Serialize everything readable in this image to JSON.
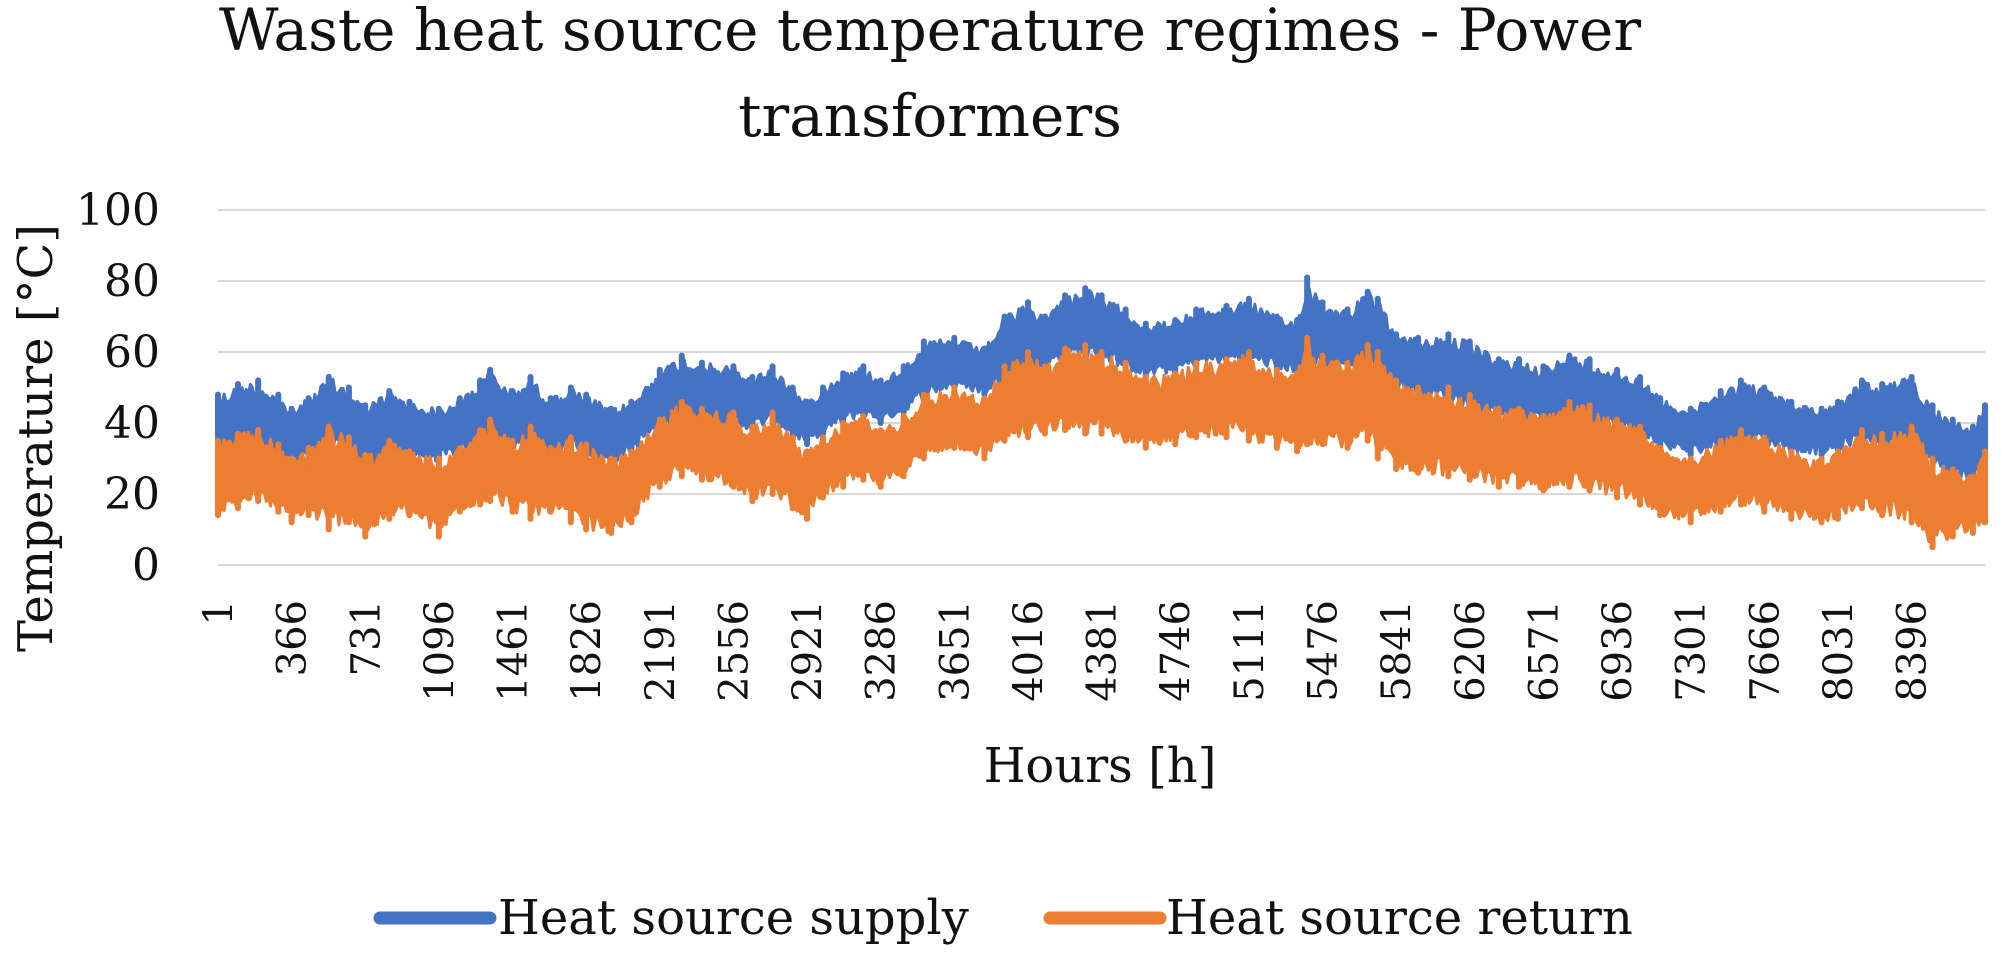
{
  "chart_data": {
    "type": "line",
    "title_lines": [
      "Waste heat source temperature regimes - Power",
      "transformers"
    ],
    "xlabel": "Hours [h]",
    "ylabel": "Temperature [°C]",
    "ylim": [
      0,
      100
    ],
    "yticks": [
      "0",
      "20",
      "40",
      "60",
      "80",
      "100"
    ],
    "xlim": [
      1,
      8760
    ],
    "xticks": [
      "1",
      "366",
      "731",
      "1096",
      "1461",
      "1826",
      "2191",
      "2556",
      "2921",
      "3286",
      "3651",
      "4016",
      "4381",
      "4746",
      "5111",
      "5476",
      "5841",
      "6206",
      "6571",
      "6936",
      "7301",
      "7666",
      "8031",
      "8396"
    ],
    "grid": true,
    "legend_position": "bottom",
    "x": [
      1,
      100,
      200,
      300,
      366,
      450,
      550,
      650,
      731,
      850,
      950,
      1096,
      1200,
      1300,
      1350,
      1461,
      1550,
      1650,
      1750,
      1826,
      1950,
      2050,
      2191,
      2300,
      2400,
      2556,
      2650,
      2750,
      2850,
      2921,
      3000,
      3100,
      3200,
      3286,
      3400,
      3500,
      3651,
      3800,
      3900,
      4016,
      4100,
      4200,
      4300,
      4381,
      4500,
      4600,
      4746,
      4850,
      5000,
      5111,
      5250,
      5350,
      5400,
      5476,
      5600,
      5700,
      5750,
      5841,
      5950,
      6100,
      6206,
      6350,
      6450,
      6571,
      6700,
      6800,
      6936,
      7050,
      7150,
      7301,
      7450,
      7550,
      7666,
      7800,
      7950,
      8031,
      8150,
      8250,
      8396,
      8500,
      8600,
      8700,
      8760
    ],
    "series": [
      {
        "name": "Heat source supply",
        "color": "#4472C4",
        "max": [
          48,
          51,
          52,
          48,
          44,
          47,
          53,
          50,
          45,
          49,
          46,
          44,
          47,
          52,
          55,
          49,
          53,
          47,
          50,
          48,
          44,
          46,
          55,
          59,
          57,
          56,
          53,
          56,
          50,
          46,
          50,
          54,
          56,
          52,
          56,
          63,
          64,
          61,
          70,
          74,
          70,
          76,
          78,
          76,
          72,
          68,
          69,
          72,
          73,
          75,
          70,
          69,
          81,
          74,
          72,
          77,
          75,
          65,
          64,
          65,
          63,
          58,
          58,
          56,
          59,
          58,
          55,
          53,
          47,
          44,
          49,
          52,
          50,
          46,
          44,
          46,
          52,
          51,
          53,
          45,
          41,
          39,
          45
        ],
        "min": [
          28,
          30,
          32,
          30,
          28,
          30,
          32,
          30,
          27,
          30,
          30,
          29,
          31,
          33,
          35,
          32,
          34,
          31,
          33,
          31,
          28,
          32,
          38,
          40,
          40,
          39,
          38,
          40,
          36,
          34,
          37,
          40,
          42,
          40,
          43,
          47,
          50,
          48,
          52,
          55,
          55,
          58,
          58,
          58,
          55,
          53,
          54,
          56,
          57,
          57,
          55,
          54,
          56,
          56,
          55,
          56,
          53,
          50,
          47,
          46,
          44,
          42,
          41,
          40,
          40,
          39,
          38,
          36,
          33,
          31,
          33,
          35,
          34,
          32,
          31,
          32,
          35,
          34,
          34,
          28,
          25,
          24,
          28
        ]
      },
      {
        "name": "Heat source return",
        "color": "#ED7D31",
        "max": [
          35,
          37,
          38,
          34,
          30,
          33,
          39,
          36,
          31,
          35,
          32,
          30,
          33,
          38,
          41,
          35,
          39,
          33,
          36,
          34,
          30,
          32,
          41,
          46,
          44,
          43,
          39,
          43,
          36,
          32,
          36,
          40,
          42,
          38,
          42,
          48,
          50,
          47,
          56,
          60,
          56,
          61,
          62,
          60,
          57,
          53,
          54,
          57,
          58,
          60,
          55,
          54,
          64,
          59,
          57,
          62,
          60,
          52,
          50,
          50,
          48,
          44,
          44,
          42,
          46,
          45,
          41,
          39,
          33,
          30,
          35,
          38,
          36,
          32,
          30,
          32,
          38,
          37,
          39,
          30,
          27,
          25,
          32
        ],
        "min": [
          14,
          16,
          18,
          15,
          12,
          14,
          10,
          12,
          8,
          13,
          14,
          8,
          15,
          17,
          18,
          15,
          13,
          15,
          12,
          10,
          9,
          12,
          22,
          25,
          24,
          22,
          18,
          20,
          16,
          13,
          19,
          22,
          24,
          22,
          25,
          30,
          33,
          30,
          35,
          36,
          37,
          38,
          37,
          37,
          35,
          33,
          34,
          36,
          36,
          35,
          33,
          32,
          34,
          34,
          33,
          35,
          30,
          27,
          26,
          25,
          24,
          22,
          22,
          21,
          22,
          21,
          19,
          17,
          14,
          12,
          15,
          17,
          15,
          13,
          12,
          13,
          16,
          14,
          12,
          5,
          8,
          9,
          12
        ]
      }
    ]
  }
}
